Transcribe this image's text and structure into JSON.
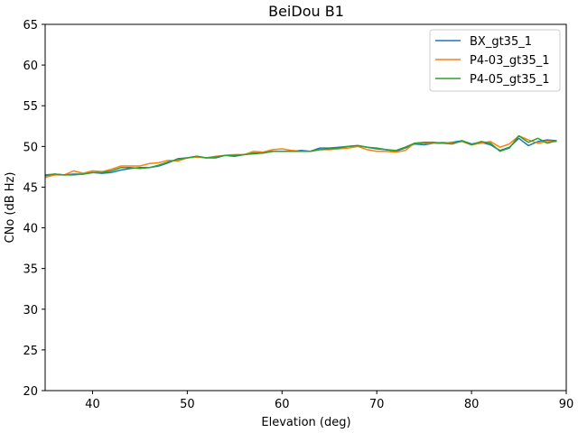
{
  "chart_data": {
    "type": "line",
    "title": "BeiDou B1",
    "xlabel": "Elevation (deg)",
    "ylabel": "CNo (dB Hz)",
    "xlim": [
      35,
      90
    ],
    "ylim": [
      20,
      65
    ],
    "xticks": [
      40,
      50,
      60,
      70,
      80,
      90
    ],
    "yticks": [
      20,
      25,
      30,
      35,
      40,
      45,
      50,
      55,
      60,
      65
    ],
    "grid": false,
    "legend_position": "top-right",
    "x": [
      35,
      36,
      37,
      38,
      39,
      40,
      41,
      42,
      43,
      44,
      45,
      46,
      47,
      48,
      49,
      50,
      51,
      52,
      53,
      54,
      55,
      56,
      57,
      58,
      59,
      60,
      61,
      62,
      63,
      64,
      65,
      66,
      67,
      68,
      69,
      70,
      71,
      72,
      73,
      74,
      75,
      76,
      77,
      78,
      79,
      80,
      81,
      82,
      83,
      84,
      85,
      86,
      87,
      88,
      89
    ],
    "series": [
      {
        "name": "BX_gt35_1",
        "color": "#1f77b4",
        "values": [
          46.4,
          46.6,
          46.5,
          46.6,
          46.6,
          46.8,
          46.7,
          46.8,
          47.1,
          47.3,
          47.4,
          47.4,
          47.6,
          48.0,
          48.5,
          48.6,
          48.8,
          48.6,
          48.6,
          48.9,
          48.8,
          49.0,
          49.2,
          49.2,
          49.4,
          49.4,
          49.4,
          49.5,
          49.4,
          49.8,
          49.8,
          49.9,
          50.0,
          50.1,
          49.9,
          49.7,
          49.6,
          49.4,
          49.8,
          50.3,
          50.2,
          50.4,
          50.4,
          50.5,
          50.7,
          50.3,
          50.5,
          50.2,
          49.5,
          49.9,
          51.0,
          50.1,
          50.6,
          50.8,
          50.7
        ]
      },
      {
        "name": "P4-03_gt35_1",
        "color": "#ff7f0e",
        "values": [
          46.2,
          46.5,
          46.5,
          47.0,
          46.7,
          47.0,
          46.9,
          47.2,
          47.6,
          47.6,
          47.6,
          47.9,
          48.0,
          48.3,
          48.2,
          48.6,
          48.7,
          48.6,
          48.8,
          48.9,
          49.0,
          49.0,
          49.4,
          49.3,
          49.6,
          49.7,
          49.5,
          49.4,
          49.4,
          49.6,
          49.6,
          49.7,
          49.8,
          50.0,
          49.6,
          49.4,
          49.4,
          49.3,
          49.5,
          50.4,
          50.4,
          50.4,
          50.5,
          50.4,
          50.6,
          50.2,
          50.4,
          50.6,
          49.9,
          50.3,
          51.3,
          50.8,
          50.4,
          50.6,
          50.6
        ]
      },
      {
        "name": "P4-05_gt35_1",
        "color": "#2ca02c",
        "values": [
          46.5,
          46.6,
          46.5,
          46.5,
          46.6,
          46.8,
          46.8,
          47.0,
          47.4,
          47.4,
          47.3,
          47.4,
          47.7,
          48.1,
          48.4,
          48.6,
          48.8,
          48.6,
          48.7,
          48.9,
          48.9,
          49.0,
          49.1,
          49.2,
          49.4,
          49.4,
          49.4,
          49.4,
          49.4,
          49.6,
          49.7,
          49.8,
          50.0,
          50.1,
          49.9,
          49.8,
          49.6,
          49.5,
          49.9,
          50.4,
          50.5,
          50.5,
          50.4,
          50.3,
          50.7,
          50.2,
          50.6,
          50.4,
          49.4,
          49.8,
          51.3,
          50.5,
          51.0,
          50.4,
          50.7
        ]
      }
    ]
  }
}
